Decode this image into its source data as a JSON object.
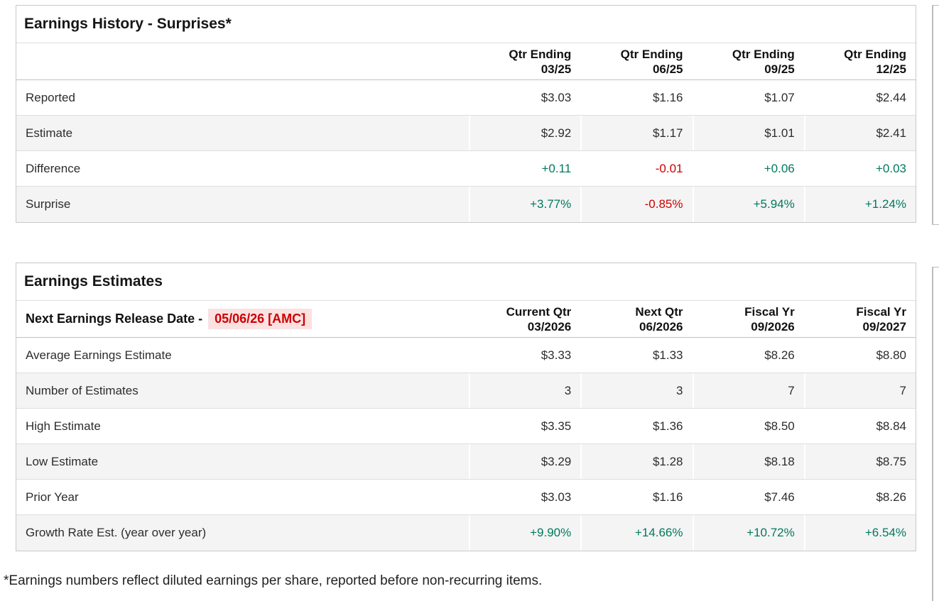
{
  "colors": {
    "positive": "#00795d",
    "negative": "#cc0000",
    "highlight_bg": "#fbe1e1"
  },
  "earnings_history": {
    "title": "Earnings History - Surprises*",
    "columns": [
      {
        "line1": "Qtr Ending",
        "line2": "03/25"
      },
      {
        "line1": "Qtr Ending",
        "line2": "06/25"
      },
      {
        "line1": "Qtr Ending",
        "line2": "09/25"
      },
      {
        "line1": "Qtr Ending",
        "line2": "12/25"
      }
    ],
    "rows": [
      {
        "label": "Reported",
        "values": [
          "$3.03",
          "$1.16",
          "$1.07",
          "$2.44"
        ]
      },
      {
        "label": "Estimate",
        "values": [
          "$2.92",
          "$1.17",
          "$1.01",
          "$2.41"
        ]
      },
      {
        "label": "Difference",
        "values": [
          "+0.11",
          "-0.01",
          "+0.06",
          "+0.03"
        ]
      },
      {
        "label": "Surprise",
        "values": [
          "+3.77%",
          "-0.85%",
          "+5.94%",
          "+1.24%"
        ]
      }
    ]
  },
  "earnings_estimates": {
    "title": "Earnings Estimates",
    "release_label": "Next Earnings Release Date -",
    "release_value": "05/06/26 [AMC]",
    "columns": [
      {
        "line1": "Current Qtr",
        "line2": "03/2026"
      },
      {
        "line1": "Next Qtr",
        "line2": "06/2026"
      },
      {
        "line1": "Fiscal Yr",
        "line2": "09/2026"
      },
      {
        "line1": "Fiscal Yr",
        "line2": "09/2027"
      }
    ],
    "rows": [
      {
        "label": "Average Earnings Estimate",
        "values": [
          "$3.33",
          "$1.33",
          "$8.26",
          "$8.80"
        ]
      },
      {
        "label": "Number of Estimates",
        "values": [
          "3",
          "3",
          "7",
          "7"
        ]
      },
      {
        "label": "High Estimate",
        "values": [
          "$3.35",
          "$1.36",
          "$8.50",
          "$8.84"
        ]
      },
      {
        "label": "Low Estimate",
        "values": [
          "$3.29",
          "$1.28",
          "$8.18",
          "$8.75"
        ]
      },
      {
        "label": "Prior Year",
        "values": [
          "$3.03",
          "$1.16",
          "$7.46",
          "$8.26"
        ]
      },
      {
        "label": "Growth Rate Est. (year over year)",
        "values": [
          "+9.90%",
          "+14.66%",
          "+10.72%",
          "+6.54%"
        ]
      }
    ]
  },
  "footnote": "*Earnings numbers reflect diluted earnings per share, reported before non-recurring items."
}
